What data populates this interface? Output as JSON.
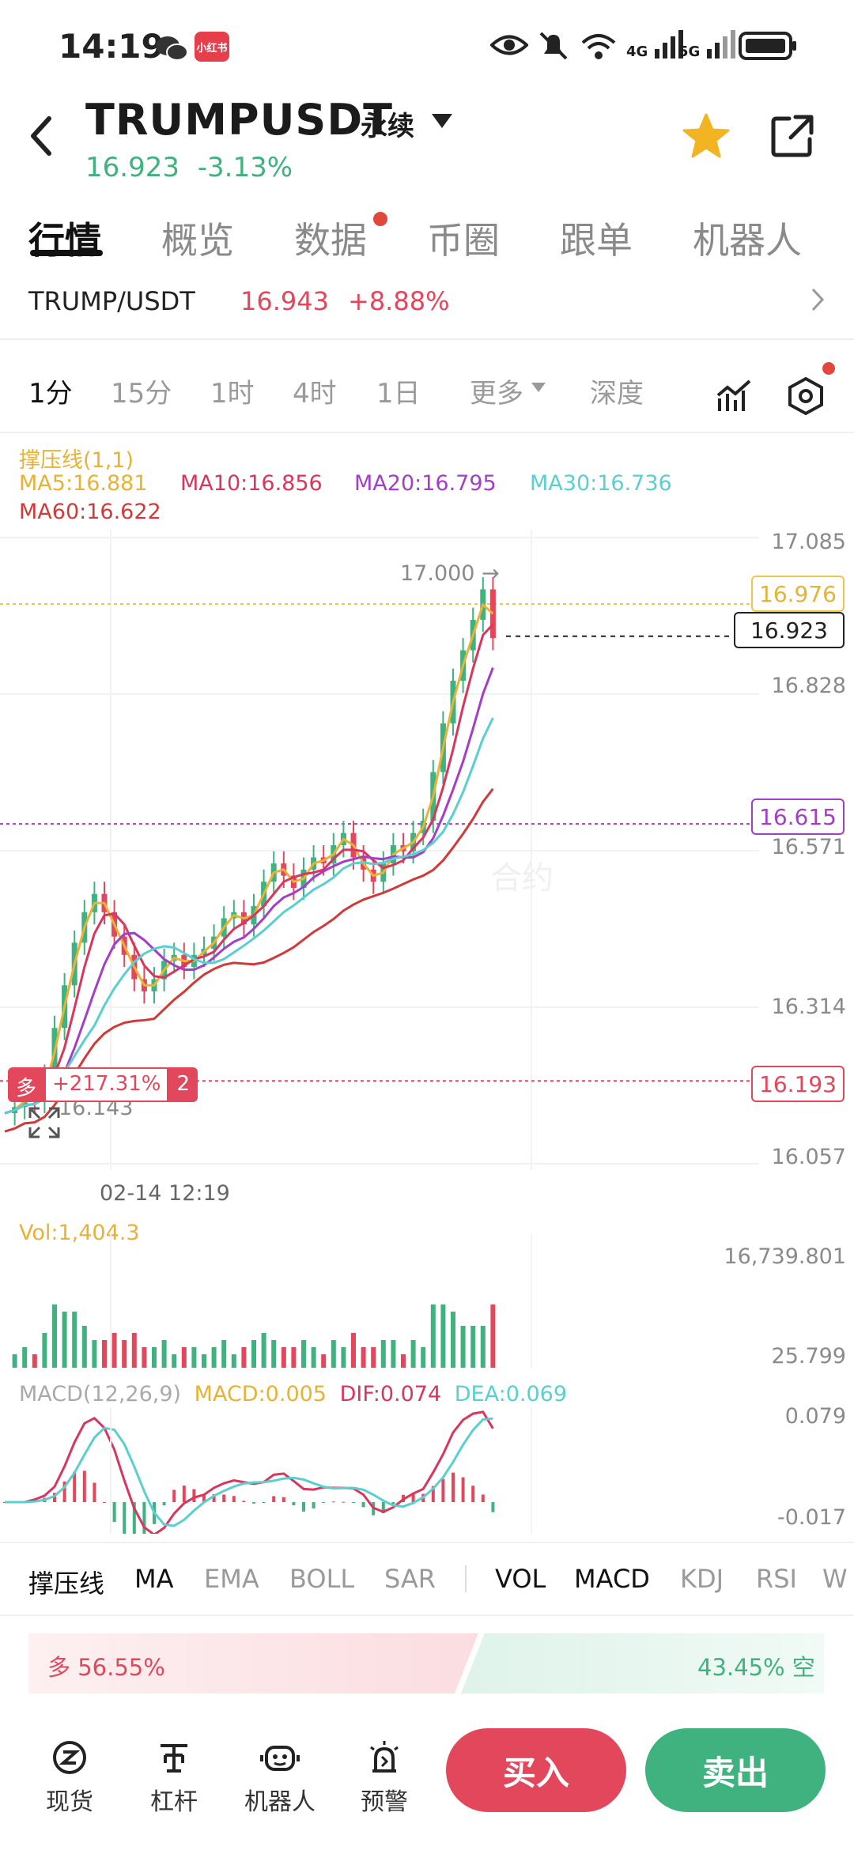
{
  "status": {
    "time": "14:19",
    "app_badge": "小红书",
    "net1": "4G",
    "net2": "5G"
  },
  "header": {
    "symbol": "TRUMPUSDT",
    "contract": "永续",
    "price": "16.923",
    "change": "-3.13%"
  },
  "tabs": [
    {
      "label": "行情",
      "active": true
    },
    {
      "label": "概览"
    },
    {
      "label": "数据",
      "dot": true
    },
    {
      "label": "币圈"
    },
    {
      "label": "跟单"
    },
    {
      "label": "机器人"
    }
  ],
  "spot": {
    "pair": "TRUMP/USDT",
    "price": "16.943",
    "change": "+8.88%"
  },
  "periods": [
    "1分",
    "15分",
    "1时",
    "4时",
    "1日",
    "更多",
    "深度"
  ],
  "overlay_title": "撑压线(1,1)",
  "ma": {
    "ma5": "MA5:16.881",
    "ma10": "MA10:16.856",
    "ma20": "MA20:16.795",
    "ma30": "MA30:16.736",
    "ma60": "MA60:16.622"
  },
  "price_axis": [
    "17.085",
    "16.828",
    "16.571",
    "16.314",
    "16.057"
  ],
  "annotations": {
    "high": "17.000 →",
    "low": "16.143",
    "resist": "16.976",
    "last": "16.923",
    "support_line": "16.615",
    "position": "16.193",
    "position_side": "多",
    "position_pnl": "+217.31%",
    "position_qty": "2"
  },
  "time_label": "02-14 12:19",
  "volume": {
    "label": "Vol:1,404.3",
    "max": "16,739.801",
    "min": "25.799"
  },
  "macd": {
    "title": "MACD(12,26,9)",
    "macd": "MACD:0.005",
    "dif": "DIF:0.074",
    "dea": "DEA:0.069",
    "max": "0.079",
    "min": "-0.017"
  },
  "indicators": [
    "撑压线",
    "MA",
    "EMA",
    "BOLL",
    "SAR",
    "VOL",
    "MACD",
    "KDJ",
    "RSI",
    "W"
  ],
  "ratio": {
    "long": "多 56.55%",
    "short": "43.45% 空",
    "long_pct": 56.55
  },
  "nav": [
    "现货",
    "杠杆",
    "机器人",
    "预警"
  ],
  "buy": "买入",
  "sell": "卖出",
  "watermark": "合约",
  "colors": {
    "up": "#e2475c",
    "down": "#3fb27f",
    "ma5": "#e8b236",
    "ma10": "#d8365e",
    "ma20": "#a43ec7",
    "ma30": "#5bcfcf",
    "ma60": "#d23a3a"
  },
  "chart_data": {
    "type": "candlestick",
    "ylim": [
      16.057,
      17.085
    ],
    "close_series": [
      16.14,
      16.15,
      16.17,
      16.16,
      16.2,
      16.28,
      16.35,
      16.42,
      16.47,
      16.5,
      16.47,
      16.43,
      16.4,
      16.36,
      16.34,
      16.36,
      16.39,
      16.4,
      16.38,
      16.4,
      16.41,
      16.43,
      16.46,
      16.47,
      16.45,
      16.48,
      16.52,
      16.55,
      16.53,
      16.51,
      16.54,
      16.56,
      16.55,
      16.58,
      16.6,
      16.56,
      16.54,
      16.52,
      16.55,
      16.58,
      16.57,
      16.6,
      16.62,
      16.7,
      16.78,
      16.85,
      16.9,
      16.95,
      17.0,
      16.92
    ]
  }
}
